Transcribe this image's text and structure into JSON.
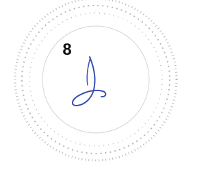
{
  "page_number": "8"
}
